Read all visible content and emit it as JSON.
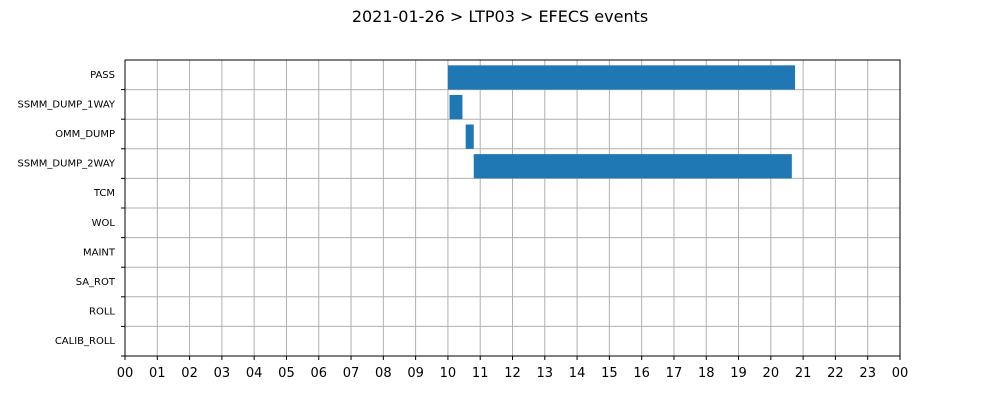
{
  "chart_data": {
    "type": "bar",
    "orientation": "horizontal",
    "title": "2021-01-26 > LTP03 > EFECS events",
    "xlabel": "",
    "ylabel": "",
    "xlim": [
      0,
      24
    ],
    "x_tick_labels": [
      "00",
      "01",
      "02",
      "03",
      "04",
      "05",
      "06",
      "07",
      "08",
      "09",
      "10",
      "11",
      "12",
      "13",
      "14",
      "15",
      "16",
      "17",
      "18",
      "19",
      "20",
      "21",
      "22",
      "23",
      "00"
    ],
    "categories": [
      "PASS",
      "SSMM_DUMP_1WAY",
      "OMM_DUMP",
      "SSMM_DUMP_2WAY",
      "TCM",
      "WOL",
      "MAINT",
      "SA_ROT",
      "ROLL",
      "CALIB_ROLL"
    ],
    "events": [
      {
        "category": "PASS",
        "start": 10.0,
        "end": 20.75
      },
      {
        "category": "SSMM_DUMP_1WAY",
        "start": 10.05,
        "end": 10.45
      },
      {
        "category": "OMM_DUMP",
        "start": 10.55,
        "end": 10.8
      },
      {
        "category": "SSMM_DUMP_2WAY",
        "start": 10.8,
        "end": 20.65
      }
    ],
    "bar_color": "#1f77b4",
    "grid": true,
    "legend": "none"
  }
}
